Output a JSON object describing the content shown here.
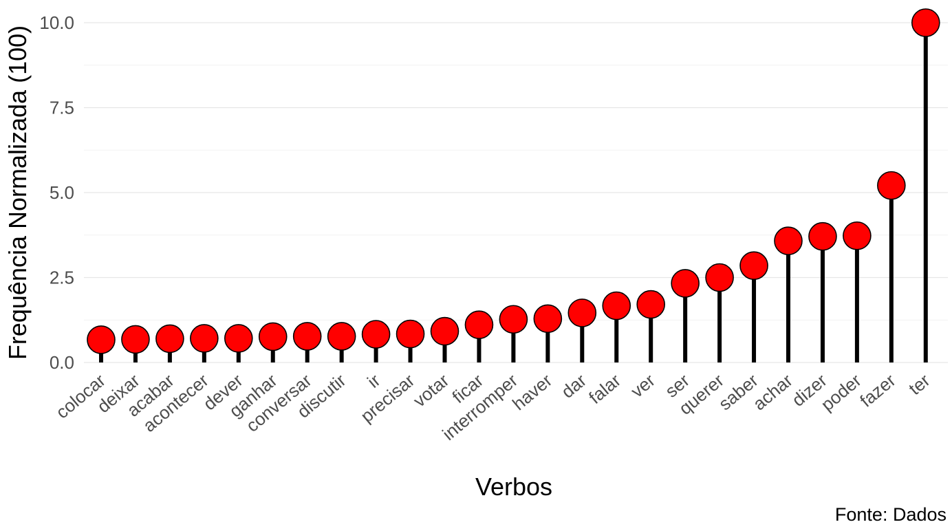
{
  "chart_data": {
    "type": "lollipop",
    "categories": [
      "colocar",
      "deixar",
      "acabar",
      "acontecer",
      "dever",
      "ganhar",
      "conversar",
      "discutir",
      "ir",
      "precisar",
      "votar",
      "ficar",
      "interromper",
      "haver",
      "dar",
      "falar",
      "ver",
      "ser",
      "querer",
      "saber",
      "achar",
      "dizer",
      "poder",
      "fazer",
      "ter"
    ],
    "values": [
      0.67,
      0.68,
      0.7,
      0.71,
      0.71,
      0.76,
      0.77,
      0.77,
      0.83,
      0.84,
      0.92,
      1.11,
      1.27,
      1.29,
      1.46,
      1.67,
      1.71,
      2.33,
      2.5,
      2.85,
      3.58,
      3.71,
      3.73,
      5.21,
      10.0
    ],
    "xlabel": "Verbos",
    "ylabel": "Frequência Normalizada (100)",
    "caption": "Fonte: Dados",
    "ylim": [
      0,
      10.0
    ],
    "yticks": [
      0.0,
      2.5,
      5.0,
      7.5,
      10.0
    ],
    "ytick_labels": [
      "0.0",
      "2.5",
      "5.0",
      "7.5",
      "10.0"
    ],
    "grid": true,
    "point_color": "#ff0000",
    "point_outline": "#000000",
    "stem_color": "#000000",
    "gridline_color": "#e6e6e6"
  }
}
